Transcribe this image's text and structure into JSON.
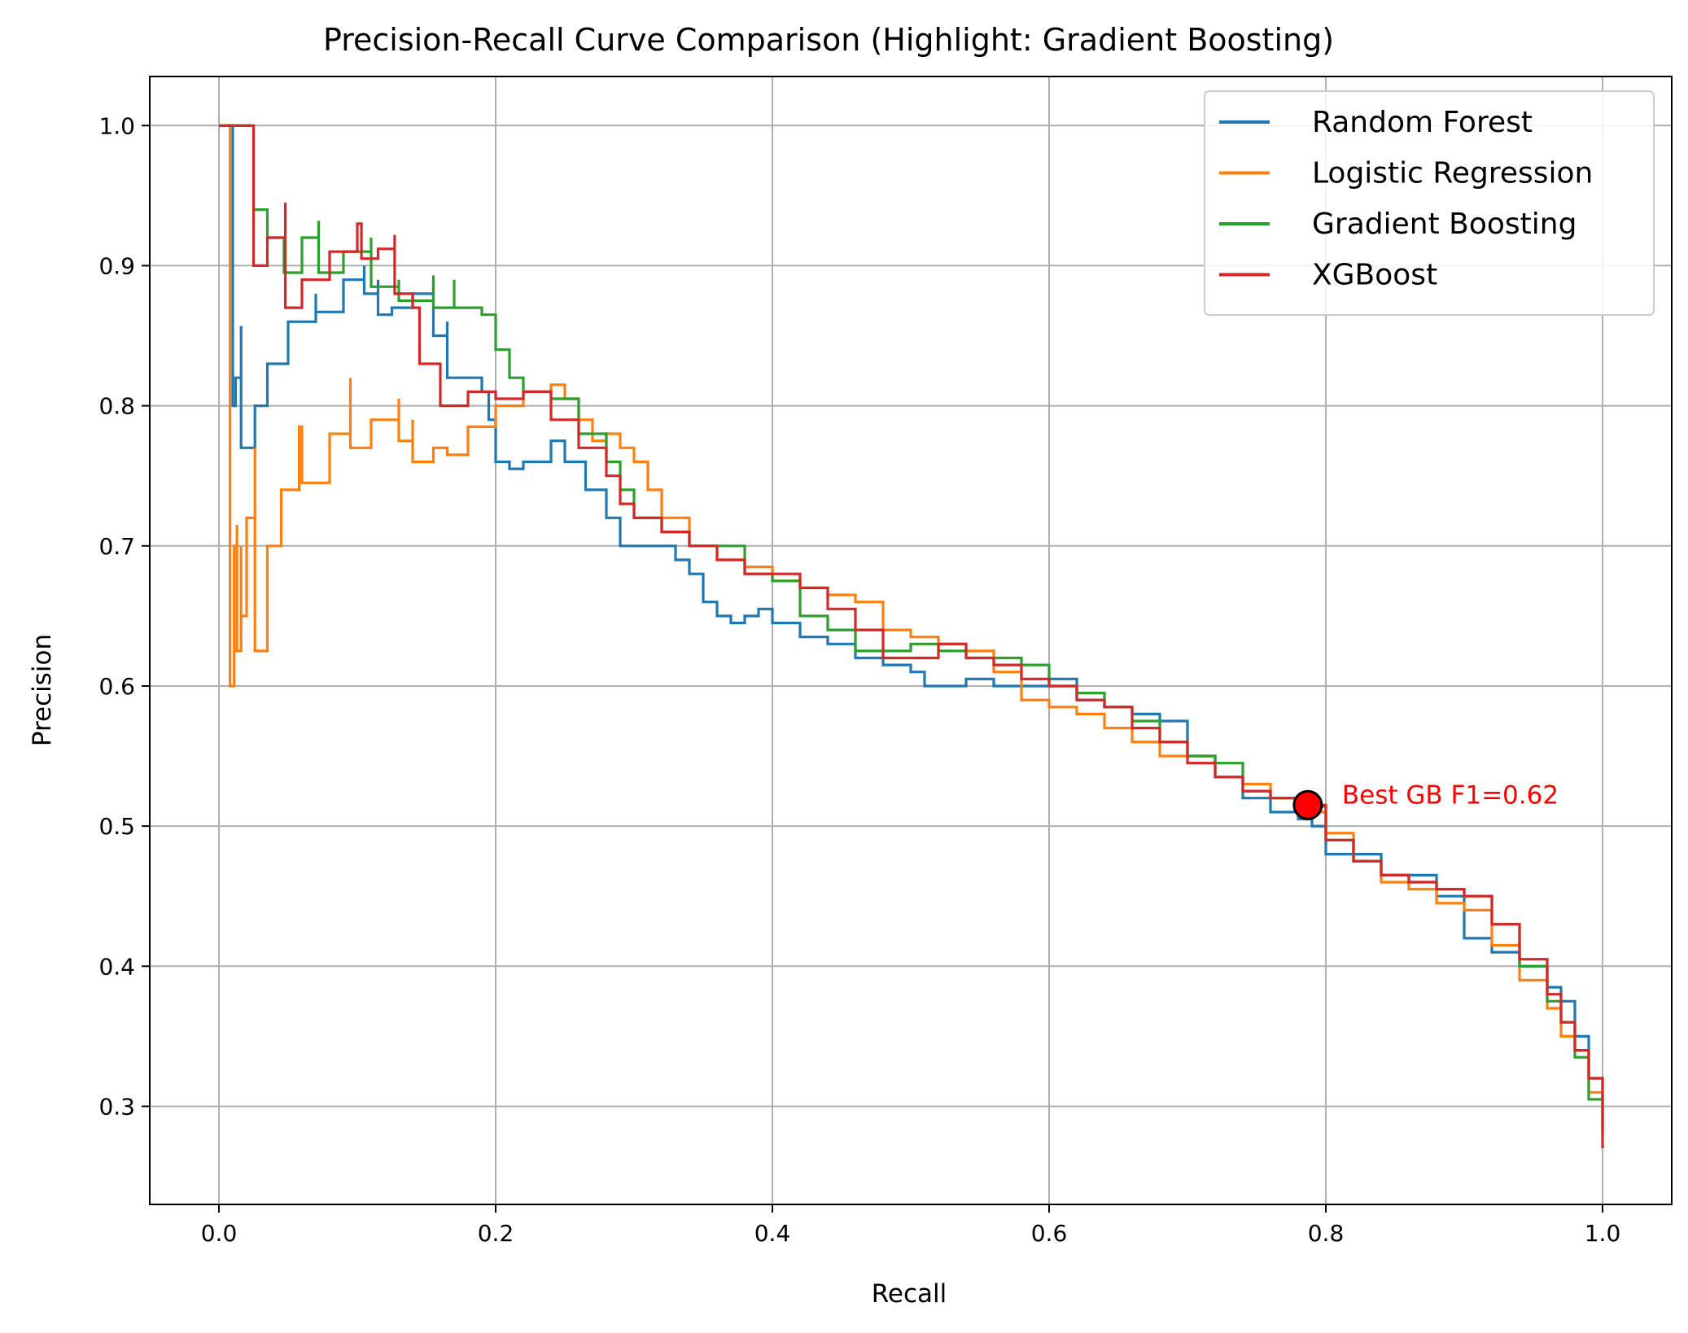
{
  "chart_data": {
    "type": "line",
    "title": "Precision-Recall Curve Comparison (Highlight: Gradient Boosting)",
    "xlabel": "Recall",
    "ylabel": "Precision",
    "xlim": [
      -0.05,
      1.05
    ],
    "ylim": [
      0.23,
      1.035
    ],
    "xticks": [
      "0.0",
      "0.2",
      "0.4",
      "0.6",
      "0.8",
      "1.0"
    ],
    "yticks": [
      "0.3",
      "0.4",
      "0.5",
      "0.6",
      "0.7",
      "0.8",
      "0.9",
      "1.0"
    ],
    "grid": true,
    "legend_position": "top-right",
    "series": [
      {
        "name": "Random Forest",
        "color": "#1f77b4",
        "x": [
          0.0,
          0.006,
          0.01,
          0.01,
          0.012,
          0.016,
          0.016,
          0.026,
          0.035,
          0.05,
          0.07,
          0.07,
          0.09,
          0.105,
          0.105,
          0.115,
          0.115,
          0.125,
          0.14,
          0.155,
          0.155,
          0.165,
          0.165,
          0.19,
          0.195,
          0.2,
          0.21,
          0.22,
          0.24,
          0.25,
          0.265,
          0.28,
          0.29,
          0.32,
          0.33,
          0.34,
          0.35,
          0.36,
          0.37,
          0.38,
          0.39,
          0.4,
          0.42,
          0.44,
          0.46,
          0.48,
          0.5,
          0.51,
          0.52,
          0.54,
          0.56,
          0.58,
          0.6,
          0.62,
          0.64,
          0.66,
          0.68,
          0.7,
          0.72,
          0.74,
          0.76,
          0.78,
          0.79,
          0.8,
          0.82,
          0.84,
          0.86,
          0.88,
          0.9,
          0.92,
          0.94,
          0.96,
          0.97,
          0.98,
          0.99,
          1.0
        ],
        "y": [
          1.0,
          1.0,
          1.0,
          0.8,
          0.82,
          0.857,
          0.77,
          0.8,
          0.83,
          0.86,
          0.88,
          0.867,
          0.89,
          0.9,
          0.88,
          0.89,
          0.865,
          0.87,
          0.88,
          0.89,
          0.85,
          0.86,
          0.82,
          0.81,
          0.79,
          0.76,
          0.755,
          0.76,
          0.775,
          0.76,
          0.74,
          0.72,
          0.7,
          0.7,
          0.69,
          0.68,
          0.66,
          0.65,
          0.645,
          0.65,
          0.655,
          0.645,
          0.635,
          0.63,
          0.62,
          0.615,
          0.61,
          0.6,
          0.6,
          0.605,
          0.6,
          0.6,
          0.605,
          0.59,
          0.585,
          0.58,
          0.575,
          0.55,
          0.535,
          0.52,
          0.51,
          0.505,
          0.5,
          0.48,
          0.48,
          0.465,
          0.465,
          0.45,
          0.42,
          0.41,
          0.4,
          0.385,
          0.375,
          0.35,
          0.32,
          0.285
        ]
      },
      {
        "name": "Logistic Regression",
        "color": "#ff7f0e",
        "x": [
          0.0,
          0.008,
          0.008,
          0.011,
          0.013,
          0.013,
          0.016,
          0.016,
          0.02,
          0.026,
          0.026,
          0.035,
          0.045,
          0.058,
          0.06,
          0.08,
          0.095,
          0.095,
          0.11,
          0.13,
          0.13,
          0.14,
          0.14,
          0.155,
          0.165,
          0.18,
          0.2,
          0.22,
          0.24,
          0.25,
          0.26,
          0.27,
          0.28,
          0.29,
          0.3,
          0.31,
          0.32,
          0.34,
          0.36,
          0.38,
          0.4,
          0.42,
          0.44,
          0.46,
          0.48,
          0.5,
          0.52,
          0.54,
          0.56,
          0.58,
          0.6,
          0.62,
          0.64,
          0.66,
          0.68,
          0.7,
          0.72,
          0.74,
          0.76,
          0.78,
          0.8,
          0.82,
          0.84,
          0.86,
          0.88,
          0.9,
          0.92,
          0.94,
          0.96,
          0.97,
          0.98,
          0.99,
          1.0
        ],
        "y": [
          1.0,
          1.0,
          0.6,
          0.7,
          0.715,
          0.625,
          0.7,
          0.65,
          0.72,
          0.77,
          0.625,
          0.7,
          0.74,
          0.785,
          0.745,
          0.78,
          0.82,
          0.77,
          0.79,
          0.805,
          0.775,
          0.79,
          0.76,
          0.77,
          0.765,
          0.785,
          0.8,
          0.81,
          0.815,
          0.805,
          0.79,
          0.775,
          0.78,
          0.77,
          0.76,
          0.74,
          0.72,
          0.7,
          0.69,
          0.685,
          0.675,
          0.67,
          0.665,
          0.66,
          0.64,
          0.635,
          0.63,
          0.625,
          0.61,
          0.59,
          0.585,
          0.58,
          0.57,
          0.56,
          0.55,
          0.55,
          0.535,
          0.53,
          0.52,
          0.51,
          0.495,
          0.475,
          0.46,
          0.455,
          0.445,
          0.44,
          0.415,
          0.39,
          0.37,
          0.35,
          0.34,
          0.31,
          0.28
        ]
      },
      {
        "name": "Gradient Boosting",
        "color": "#2ca02c",
        "x": [
          0.0,
          0.015,
          0.022,
          0.025,
          0.035,
          0.047,
          0.047,
          0.06,
          0.072,
          0.072,
          0.09,
          0.11,
          0.11,
          0.13,
          0.13,
          0.155,
          0.155,
          0.17,
          0.17,
          0.19,
          0.2,
          0.21,
          0.22,
          0.24,
          0.26,
          0.28,
          0.29,
          0.3,
          0.32,
          0.34,
          0.36,
          0.38,
          0.4,
          0.42,
          0.44,
          0.46,
          0.48,
          0.5,
          0.52,
          0.54,
          0.56,
          0.58,
          0.6,
          0.62,
          0.64,
          0.66,
          0.68,
          0.7,
          0.72,
          0.74,
          0.76,
          0.78,
          0.787,
          0.8,
          0.82,
          0.84,
          0.86,
          0.88,
          0.9,
          0.92,
          0.94,
          0.96,
          0.97,
          0.98,
          0.99,
          1.0
        ],
        "y": [
          1.0,
          1.0,
          1.0,
          0.94,
          0.92,
          0.905,
          0.895,
          0.92,
          0.932,
          0.895,
          0.91,
          0.92,
          0.885,
          0.89,
          0.875,
          0.893,
          0.87,
          0.89,
          0.87,
          0.865,
          0.84,
          0.82,
          0.81,
          0.805,
          0.78,
          0.76,
          0.74,
          0.72,
          0.71,
          0.7,
          0.7,
          0.68,
          0.675,
          0.65,
          0.64,
          0.625,
          0.625,
          0.63,
          0.625,
          0.62,
          0.62,
          0.615,
          0.6,
          0.595,
          0.585,
          0.575,
          0.56,
          0.55,
          0.545,
          0.525,
          0.52,
          0.515,
          0.514,
          0.49,
          0.475,
          0.465,
          0.46,
          0.455,
          0.45,
          0.43,
          0.4,
          0.375,
          0.36,
          0.335,
          0.305,
          0.28
        ]
      },
      {
        "name": "XGBoost",
        "color": "#d62728",
        "x": [
          0.0,
          0.02,
          0.025,
          0.025,
          0.035,
          0.048,
          0.048,
          0.06,
          0.08,
          0.1,
          0.103,
          0.103,
          0.115,
          0.127,
          0.127,
          0.14,
          0.145,
          0.145,
          0.16,
          0.16,
          0.18,
          0.2,
          0.22,
          0.24,
          0.26,
          0.28,
          0.29,
          0.3,
          0.32,
          0.34,
          0.36,
          0.38,
          0.4,
          0.42,
          0.44,
          0.46,
          0.48,
          0.5,
          0.52,
          0.54,
          0.56,
          0.58,
          0.6,
          0.62,
          0.64,
          0.66,
          0.68,
          0.7,
          0.72,
          0.74,
          0.76,
          0.78,
          0.8,
          0.82,
          0.84,
          0.86,
          0.88,
          0.9,
          0.92,
          0.94,
          0.96,
          0.97,
          0.98,
          0.99,
          1.0
        ],
        "y": [
          1.0,
          1.0,
          0.9,
          0.9,
          0.92,
          0.945,
          0.87,
          0.89,
          0.91,
          0.93,
          0.928,
          0.905,
          0.912,
          0.922,
          0.88,
          0.87,
          0.87,
          0.83,
          0.82,
          0.8,
          0.81,
          0.805,
          0.81,
          0.79,
          0.77,
          0.75,
          0.73,
          0.72,
          0.71,
          0.7,
          0.69,
          0.68,
          0.68,
          0.67,
          0.655,
          0.64,
          0.62,
          0.62,
          0.63,
          0.62,
          0.615,
          0.605,
          0.6,
          0.59,
          0.585,
          0.57,
          0.56,
          0.545,
          0.535,
          0.525,
          0.52,
          0.515,
          0.49,
          0.475,
          0.465,
          0.46,
          0.455,
          0.45,
          0.43,
          0.405,
          0.38,
          0.36,
          0.34,
          0.32,
          0.27
        ]
      }
    ],
    "annotations": [
      {
        "text": "Best GB F1=0.62",
        "x": 0.787,
        "y": 0.515,
        "color": "#ff0000",
        "marker_fill": "#ff0000",
        "marker_edge": "#000000"
      }
    ]
  }
}
